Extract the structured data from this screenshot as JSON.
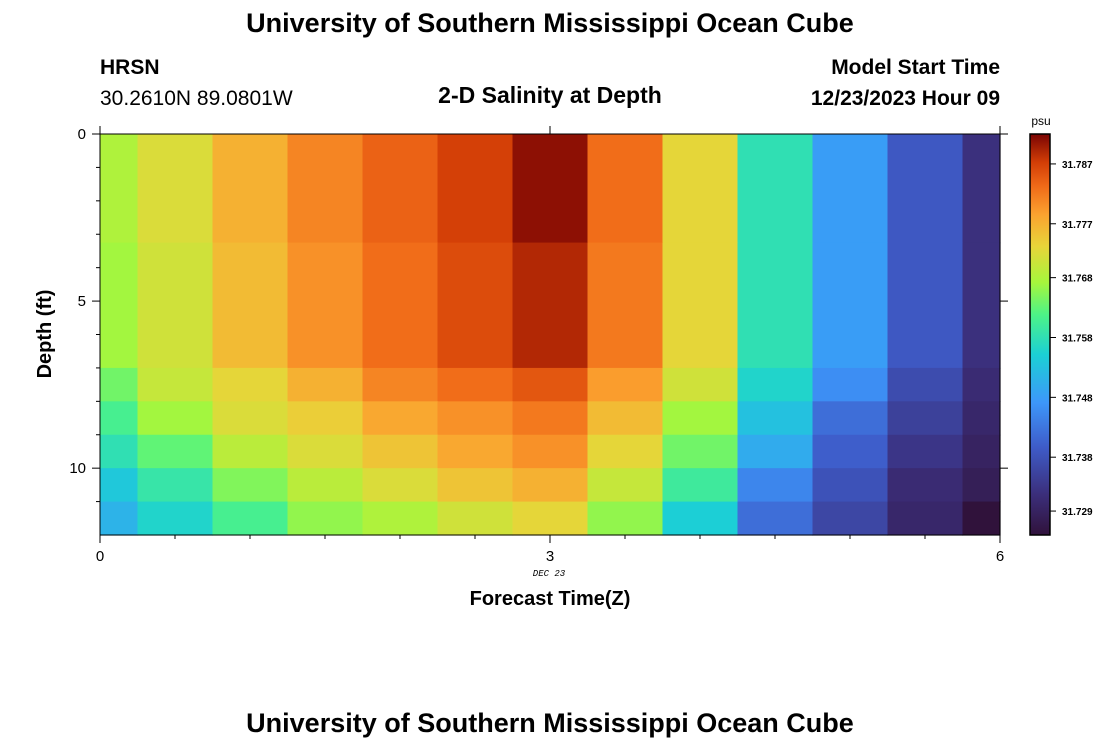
{
  "page": {
    "title": "University of Southern Mississippi Ocean Cube",
    "station": "HRSN",
    "coords": "30.2610N  89.0801W",
    "model_label": "Model Start Time",
    "model_time": "12/23/2023 Hour 09",
    "footer_title": "University of Southern Mississippi Ocean Cube"
  },
  "chart_data": {
    "type": "heatmap",
    "title": "2-D Salinity at Depth",
    "xlabel": "Forecast Time(Z)",
    "ylabel": "Depth (ft)",
    "x_sublabel": "DEC 23",
    "x_ticks": [
      "0",
      "3",
      "6"
    ],
    "y_ticks": [
      "0",
      "5",
      "10"
    ],
    "xlim": [
      0,
      6
    ],
    "ylim": [
      0,
      12
    ],
    "colorbar": {
      "unit": "psu",
      "labels": [
        "31.787",
        "31.777",
        "31.768",
        "31.758",
        "31.748",
        "31.738",
        "31.729"
      ],
      "vmin": 31.725,
      "vmax": 31.792
    },
    "time_hours": [
      0,
      0.5,
      1,
      1.5,
      2,
      2.5,
      3,
      3.5,
      4,
      4.5,
      5,
      5.5,
      6
    ],
    "depth_ft": [
      0,
      6.5,
      7.5,
      8.5,
      9.5,
      10.5,
      11.5
    ],
    "z_psu": [
      [
        31.768,
        31.772,
        31.777,
        31.781,
        31.784,
        31.787,
        31.791,
        31.783,
        31.773,
        31.758,
        31.748,
        31.739,
        31.732
      ],
      [
        31.767,
        31.771,
        31.776,
        31.78,
        31.783,
        31.786,
        31.789,
        31.782,
        31.773,
        31.758,
        31.748,
        31.739,
        31.732
      ],
      [
        31.764,
        31.77,
        31.773,
        31.777,
        31.781,
        31.783,
        31.785,
        31.779,
        31.771,
        31.756,
        31.746,
        31.737,
        31.731
      ],
      [
        31.761,
        31.767,
        31.772,
        31.774,
        31.778,
        31.78,
        31.782,
        31.776,
        31.767,
        31.753,
        31.742,
        31.735,
        31.73
      ],
      [
        31.758,
        31.763,
        31.769,
        31.772,
        31.775,
        31.778,
        31.78,
        31.773,
        31.764,
        31.75,
        31.74,
        31.733,
        31.729
      ],
      [
        31.754,
        31.759,
        31.765,
        31.769,
        31.772,
        31.775,
        31.777,
        31.77,
        31.76,
        31.745,
        31.738,
        31.731,
        31.728
      ],
      [
        31.751,
        31.756,
        31.761,
        31.766,
        31.768,
        31.771,
        31.773,
        31.766,
        31.755,
        31.742,
        31.736,
        31.73,
        31.725
      ]
    ]
  }
}
